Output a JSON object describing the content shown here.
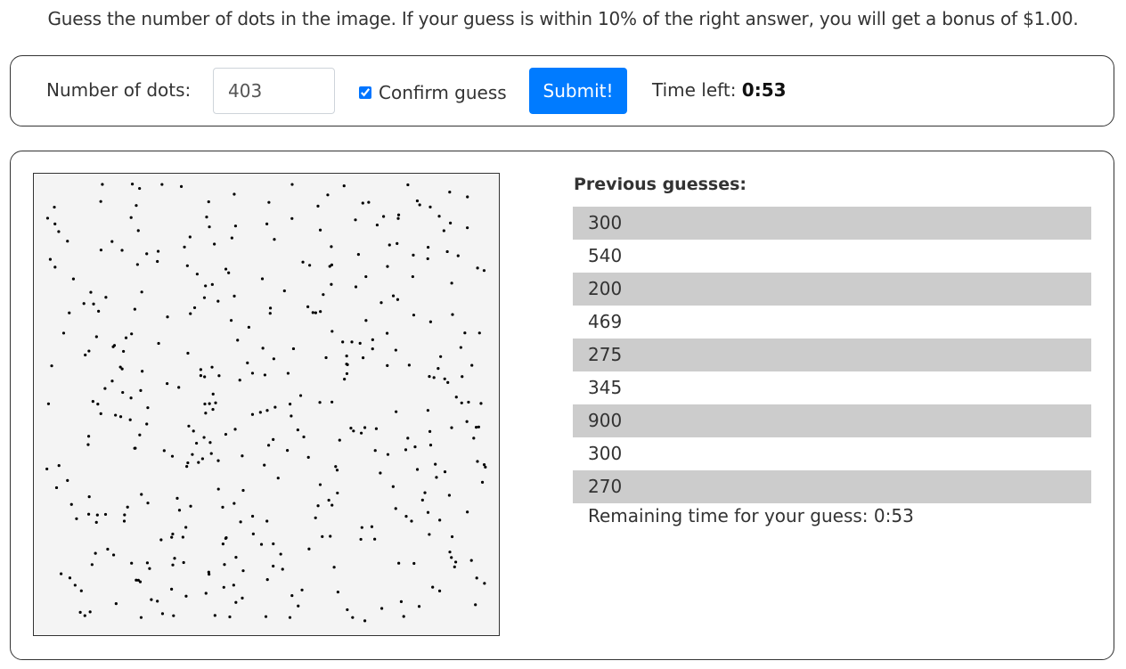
{
  "instructions": "Guess the number of dots in the image. If your guess is within 10% of the right answer, you will get a bonus of $1.00.",
  "guess_form": {
    "label": "Number of dots:",
    "input_value": "403",
    "confirm_label": "Confirm guess",
    "confirm_checked": true,
    "submit_label": "Submit!",
    "time_left_label": "Time left:",
    "time_left_value": "0:53"
  },
  "dot_image": {
    "background": "#f4f4f4",
    "dot_color": "#000000"
  },
  "previous_guesses": {
    "title": "Previous guesses:",
    "items": [
      "300",
      "540",
      "200",
      "469",
      "275",
      "345",
      "900",
      "300",
      "270"
    ],
    "remaining_text": "Remaining time for your guess: 0:53"
  },
  "colors": {
    "primary": "#007bff",
    "stripe": "#cccccc",
    "border": "#333333"
  }
}
